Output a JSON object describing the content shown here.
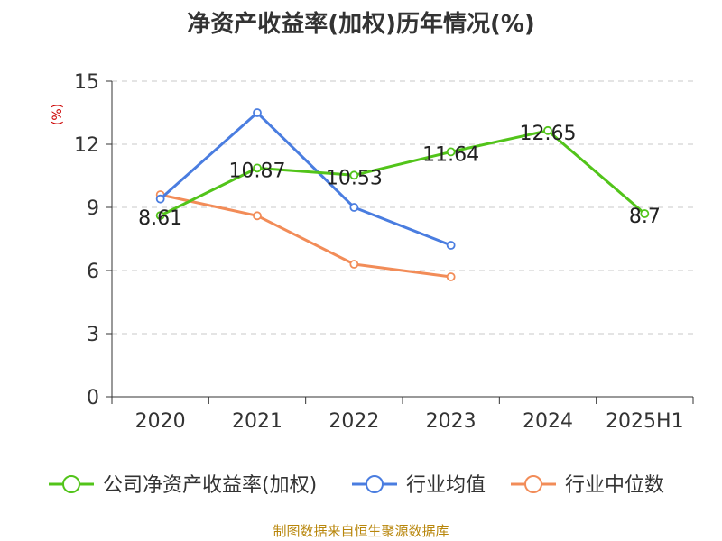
{
  "chart_data": {
    "type": "line",
    "title": "净资产收益率(加权)历年情况(%)",
    "ylabel": "(%)",
    "categories": [
      "2020",
      "2021",
      "2022",
      "2023",
      "2024",
      "2025H1"
    ],
    "ylim": [
      0,
      15
    ],
    "yticks": [
      0,
      3,
      6,
      9,
      12,
      15
    ],
    "grid": true,
    "legend_position": "bottom",
    "series": [
      {
        "name": "公司净资产收益率(加权)",
        "color": "#52c41a",
        "values": [
          8.61,
          10.87,
          10.53,
          11.64,
          12.65,
          8.7
        ],
        "labels": [
          "8.61",
          "10.87",
          "10.53",
          "11.64",
          "12.65",
          "8.7"
        ]
      },
      {
        "name": "行业均值",
        "color": "#4a7de0",
        "values": [
          9.4,
          13.5,
          9.0,
          7.2,
          null,
          null
        ]
      },
      {
        "name": "行业中位数",
        "color": "#f28c58",
        "values": [
          9.6,
          8.6,
          6.3,
          5.7,
          null,
          null
        ]
      }
    ]
  },
  "source": "制图数据来自恒生聚源数据库"
}
